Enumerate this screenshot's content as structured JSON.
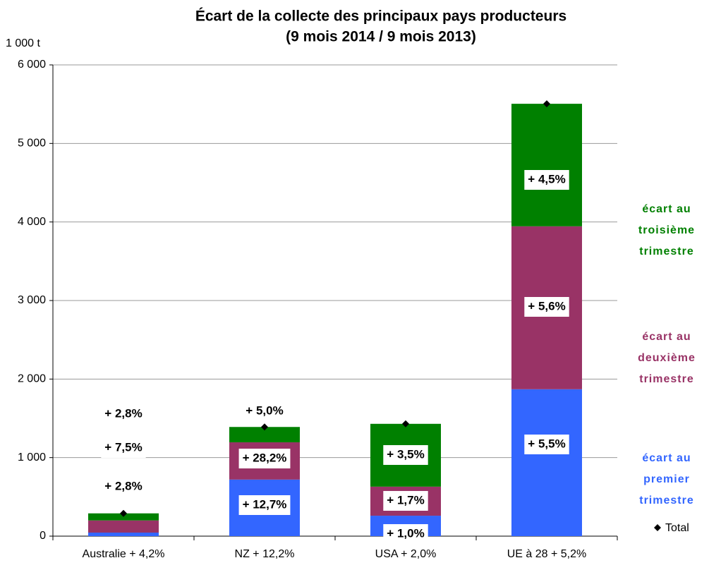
{
  "chart_data": {
    "type": "stacked_bar",
    "title": "Écart de la collecte des principaux pays producteurs",
    "subtitle": "(9 mois 2014 / 9 mois 2013)",
    "y_label": "1 000 t",
    "categories": [
      "Australie + 4,2%",
      "NZ + 12,2%",
      "USA + 2,0%",
      "UE à 28 + 5,2%"
    ],
    "ylim": [
      0,
      6000
    ],
    "yticks": [
      0,
      {
        "value": 1000,
        "label": "1 000"
      },
      {
        "value": 2000,
        "label": "2 000"
      },
      {
        "value": 3000,
        "label": "3 000"
      },
      {
        "value": 4000,
        "label": "4 000"
      },
      {
        "value": 5000,
        "label": "5 000"
      },
      {
        "value": 6000,
        "label": "6 000"
      }
    ],
    "grid": true,
    "series": [
      {
        "name": "écart au premier trimestre",
        "color": "#3366ff",
        "label_color": "#0000cc",
        "values": [
          45,
          720,
          260,
          1870
        ],
        "labels": [
          "+ 2,8%",
          "+ 12,7%",
          "+ 1,0%",
          "+ 5,5%"
        ]
      },
      {
        "name": "écart au deuxième trimestre",
        "color": "#993366",
        "label_color": "#993366",
        "values": [
          155,
          475,
          370,
          2075
        ],
        "labels": [
          "+ 7,5%",
          "+ 28,2%",
          "+ 1,7%",
          "+ 5,6%"
        ]
      },
      {
        "name": "écart au troisième trimestre",
        "color": "#008000",
        "label_color": "#008000",
        "values": [
          90,
          195,
          800,
          1560
        ],
        "labels": [
          "+ 2,8%",
          "+ 5,0%",
          "+ 3,5%",
          "+ 4,5%"
        ]
      }
    ],
    "total": {
      "name": "Total",
      "values": [
        290,
        1390,
        1430,
        5505
      ]
    }
  }
}
